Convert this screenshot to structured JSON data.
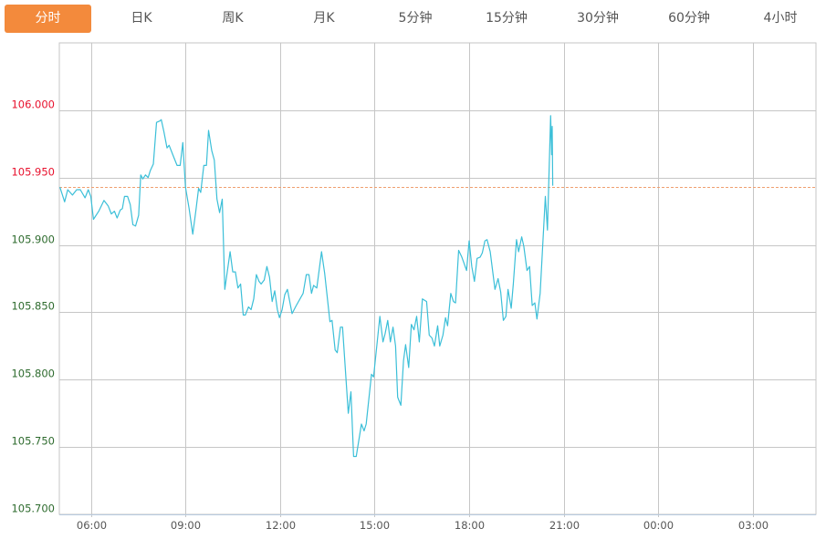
{
  "tabs": [
    {
      "label": "分时",
      "active": true
    },
    {
      "label": "日K",
      "active": false
    },
    {
      "label": "周K",
      "active": false
    },
    {
      "label": "月K",
      "active": false
    },
    {
      "label": "5分钟",
      "active": false
    },
    {
      "label": "15分钟",
      "active": false
    },
    {
      "label": "30分钟",
      "active": false
    },
    {
      "label": "60分钟",
      "active": false
    },
    {
      "label": "4小时",
      "active": false
    }
  ],
  "colors": {
    "accent": "#f38a3c",
    "line": "#3bbfd8",
    "up": "#e8112d",
    "down": "#2e6b2e",
    "reference": "#f0a070",
    "grid": "#c6c6c6",
    "axis": "#b9cbe0"
  },
  "chart_data": {
    "type": "line",
    "title": "",
    "xlabel": "",
    "ylabel": "",
    "xlim": [
      "05:00",
      "05:00"
    ],
    "ylim": [
      105.7,
      106.05
    ],
    "grid": true,
    "x_ticks": [
      "06:00",
      "09:00",
      "12:00",
      "15:00",
      "18:00",
      "21:00",
      "00:00",
      "03:00"
    ],
    "y_ticks": [
      "105.700",
      "105.750",
      "105.800",
      "105.850",
      "105.900",
      "105.950",
      "106.000"
    ],
    "reference_value": 105.943,
    "points": [
      [
        "05:01",
        105.943
      ],
      [
        "05:10",
        105.932
      ],
      [
        "05:16",
        105.941
      ],
      [
        "05:25",
        105.937
      ],
      [
        "05:33",
        105.941
      ],
      [
        "05:40",
        105.941
      ],
      [
        "05:49",
        105.935
      ],
      [
        "05:55",
        105.941
      ],
      [
        "06:00",
        105.936
      ],
      [
        "06:05",
        105.919
      ],
      [
        "06:15",
        105.925
      ],
      [
        "06:25",
        105.933
      ],
      [
        "06:33",
        105.929
      ],
      [
        "06:39",
        105.923
      ],
      [
        "06:45",
        105.925
      ],
      [
        "06:50",
        105.92
      ],
      [
        "06:56",
        105.926
      ],
      [
        "07:00",
        105.927
      ],
      [
        "07:04",
        105.936
      ],
      [
        "07:10",
        105.936
      ],
      [
        "07:15",
        105.93
      ],
      [
        "07:20",
        105.915
      ],
      [
        "07:25",
        105.914
      ],
      [
        "07:31",
        105.922
      ],
      [
        "07:35",
        105.952
      ],
      [
        "07:39",
        105.949
      ],
      [
        "07:44",
        105.952
      ],
      [
        "07:49",
        105.95
      ],
      [
        "07:53",
        105.955
      ],
      [
        "07:59",
        105.96
      ],
      [
        "08:05",
        105.991
      ],
      [
        "08:11",
        105.992
      ],
      [
        "08:14",
        105.993
      ],
      [
        "08:19",
        105.984
      ],
      [
        "08:25",
        105.972
      ],
      [
        "08:29",
        105.974
      ],
      [
        "08:36",
        105.967
      ],
      [
        "08:44",
        105.959
      ],
      [
        "08:50",
        105.959
      ],
      [
        "08:55",
        105.976
      ],
      [
        "09:00",
        105.943
      ],
      [
        "09:07",
        105.927
      ],
      [
        "09:14",
        105.908
      ],
      [
        "09:20",
        105.926
      ],
      [
        "09:25",
        105.942
      ],
      [
        "09:29",
        105.939
      ],
      [
        "09:35",
        105.959
      ],
      [
        "09:40",
        105.959
      ],
      [
        "09:44",
        105.985
      ],
      [
        "09:50",
        105.97
      ],
      [
        "09:55",
        105.963
      ],
      [
        "10:00",
        105.934
      ],
      [
        "10:05",
        105.924
      ],
      [
        "10:10",
        105.934
      ],
      [
        "10:15",
        105.867
      ],
      [
        "10:25",
        105.895
      ],
      [
        "10:30",
        105.88
      ],
      [
        "10:35",
        105.88
      ],
      [
        "10:40",
        105.868
      ],
      [
        "10:45",
        105.871
      ],
      [
        "10:50",
        105.848
      ],
      [
        "10:54",
        105.848
      ],
      [
        "11:00",
        105.854
      ],
      [
        "11:05",
        105.852
      ],
      [
        "11:10",
        105.86
      ],
      [
        "11:15",
        105.878
      ],
      [
        "11:20",
        105.873
      ],
      [
        "11:24",
        105.871
      ],
      [
        "11:30",
        105.874
      ],
      [
        "11:35",
        105.884
      ],
      [
        "11:40",
        105.876
      ],
      [
        "11:45",
        105.858
      ],
      [
        "11:50",
        105.866
      ],
      [
        "11:55",
        105.852
      ],
      [
        "11:59",
        105.846
      ],
      [
        "12:04",
        105.852
      ],
      [
        "12:09",
        105.863
      ],
      [
        "12:14",
        105.867
      ],
      [
        "12:23",
        105.849
      ],
      [
        "12:31",
        105.855
      ],
      [
        "12:44",
        105.864
      ],
      [
        "12:50",
        105.878
      ],
      [
        "12:55",
        105.878
      ],
      [
        "13:00",
        105.864
      ],
      [
        "13:04",
        105.87
      ],
      [
        "13:10",
        105.868
      ],
      [
        "13:19",
        105.895
      ],
      [
        "13:25",
        105.879
      ],
      [
        "13:35",
        105.843
      ],
      [
        "13:39",
        105.844
      ],
      [
        "13:45",
        105.822
      ],
      [
        "13:49",
        105.82
      ],
      [
        "13:55",
        105.839
      ],
      [
        "13:59",
        105.839
      ],
      [
        "14:10",
        105.775
      ],
      [
        "14:15",
        105.791
      ],
      [
        "14:20",
        105.743
      ],
      [
        "14:25",
        105.743
      ],
      [
        "14:35",
        105.767
      ],
      [
        "14:40",
        105.762
      ],
      [
        "14:44",
        105.767
      ],
      [
        "14:54",
        105.804
      ],
      [
        "14:58",
        105.802
      ],
      [
        "15:10",
        105.847
      ],
      [
        "15:16",
        105.828
      ],
      [
        "15:20",
        105.834
      ],
      [
        "15:25",
        105.844
      ],
      [
        "15:30",
        105.828
      ],
      [
        "15:35",
        105.839
      ],
      [
        "15:40",
        105.825
      ],
      [
        "15:44",
        105.787
      ],
      [
        "15:50",
        105.781
      ],
      [
        "15:55",
        105.814
      ],
      [
        "15:59",
        105.826
      ],
      [
        "16:05",
        105.809
      ],
      [
        "16:10",
        105.841
      ],
      [
        "16:15",
        105.837
      ],
      [
        "16:20",
        105.847
      ],
      [
        "16:25",
        105.828
      ],
      [
        "16:31",
        105.86
      ],
      [
        "16:39",
        105.858
      ],
      [
        "16:44",
        105.833
      ],
      [
        "16:49",
        105.831
      ],
      [
        "16:54",
        105.825
      ],
      [
        "17:00",
        105.84
      ],
      [
        "17:04",
        105.825
      ],
      [
        "17:10",
        105.833
      ],
      [
        "17:15",
        105.846
      ],
      [
        "17:19",
        105.84
      ],
      [
        "17:25",
        105.864
      ],
      [
        "17:30",
        105.858
      ],
      [
        "17:34",
        105.857
      ],
      [
        "17:40",
        105.896
      ],
      [
        "17:46",
        105.891
      ],
      [
        "17:55",
        105.881
      ],
      [
        "18:00",
        105.903
      ],
      [
        "18:05",
        105.884
      ],
      [
        "18:10",
        105.873
      ],
      [
        "18:15",
        105.89
      ],
      [
        "18:21",
        105.891
      ],
      [
        "18:25",
        105.894
      ],
      [
        "18:30",
        105.903
      ],
      [
        "18:34",
        105.904
      ],
      [
        "18:40",
        105.895
      ],
      [
        "18:49",
        105.867
      ],
      [
        "18:55",
        105.875
      ],
      [
        "19:00",
        105.865
      ],
      [
        "19:05",
        105.844
      ],
      [
        "19:10",
        105.847
      ],
      [
        "19:14",
        105.867
      ],
      [
        "19:20",
        105.853
      ],
      [
        "19:24",
        105.871
      ],
      [
        "19:30",
        105.904
      ],
      [
        "19:34",
        105.895
      ],
      [
        "19:40",
        105.906
      ],
      [
        "19:44",
        105.899
      ],
      [
        "19:50",
        105.881
      ],
      [
        "19:55",
        105.884
      ],
      [
        "20:00",
        105.855
      ],
      [
        "20:05",
        105.857
      ],
      [
        "20:09",
        105.845
      ],
      [
        "20:15",
        105.864
      ],
      [
        "20:25",
        105.936
      ],
      [
        "20:29",
        105.911
      ],
      [
        "20:35",
        105.996
      ],
      [
        "20:37",
        105.967
      ],
      [
        "20:38",
        105.988
      ],
      [
        "20:39",
        105.944
      ]
    ]
  }
}
